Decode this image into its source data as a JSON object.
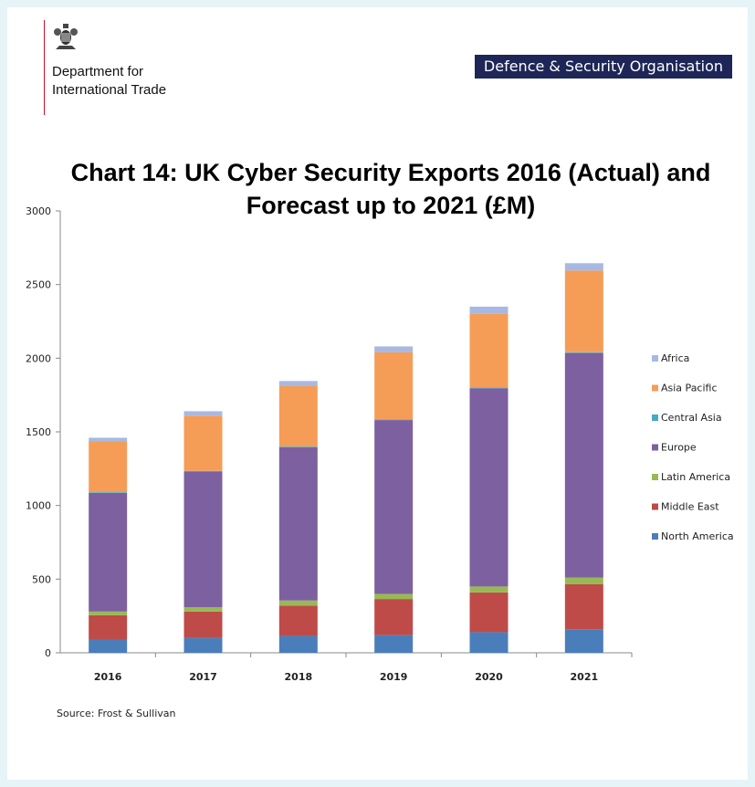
{
  "header": {
    "department_line_1": "Department for",
    "department_line_2": "International Trade",
    "organisation_banner": "Defence & Security Organisation"
  },
  "chart_data": {
    "type": "bar",
    "stacked": true,
    "title_line_1": "Chart 14: UK Cyber Security Exports 2016 (Actual) and",
    "title_line_2": "Forecast up to 2021 (£M)",
    "categories": [
      "2016",
      "2017",
      "2018",
      "2019",
      "2020",
      "2021"
    ],
    "ylim": [
      0,
      3000
    ],
    "yticks": [
      0,
      500,
      1000,
      1500,
      2000,
      2500,
      3000
    ],
    "grid": false,
    "legend_position": "right",
    "series": [
      {
        "name": "North America",
        "color": "#4a7ebb",
        "values": [
          90,
          100,
          115,
          120,
          140,
          160
        ]
      },
      {
        "name": "Middle East",
        "color": "#be4b48",
        "values": [
          165,
          180,
          205,
          245,
          270,
          305
        ]
      },
      {
        "name": "Latin America",
        "color": "#98b954",
        "values": [
          25,
          30,
          35,
          35,
          40,
          45
        ]
      },
      {
        "name": "Europe",
        "color": "#7d60a0",
        "values": [
          805,
          920,
          1040,
          1180,
          1345,
          1525
        ]
      },
      {
        "name": "Central Asia",
        "color": "#46aac5",
        "values": [
          5,
          5,
          5,
          5,
          5,
          5
        ]
      },
      {
        "name": "Asia Pacific",
        "color": "#f59d56",
        "values": [
          345,
          375,
          410,
          455,
          500,
          555
        ]
      },
      {
        "name": "Africa",
        "color": "#a7b9e3",
        "values": [
          25,
          30,
          35,
          40,
          50,
          50
        ]
      }
    ],
    "legend_order": [
      "Africa",
      "Asia Pacific",
      "Central Asia",
      "Europe",
      "Latin America",
      "Middle East",
      "North America"
    ]
  },
  "footer": {
    "source": "Source: Frost & Sullivan"
  }
}
